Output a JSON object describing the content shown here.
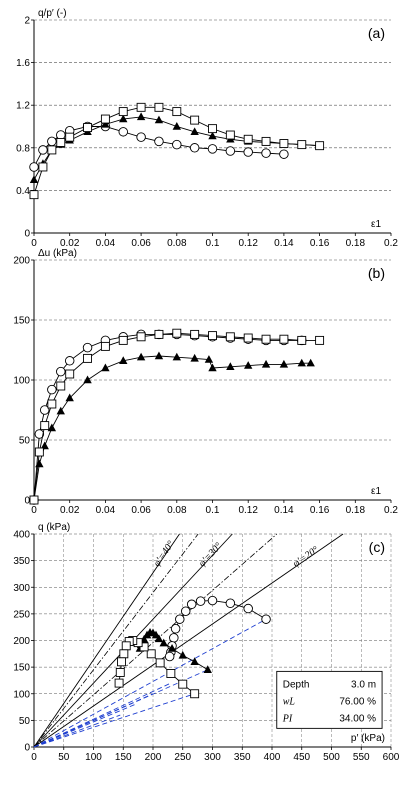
{
  "chart_data": [
    {
      "panel": "(a)",
      "type": "line",
      "ylabel": "q/p′ (-)",
      "xlabel": "ε1",
      "xlim": [
        0,
        0.2
      ],
      "ylim": [
        0,
        2
      ],
      "xticks": [
        0,
        0.02,
        0.04,
        0.06,
        0.08,
        0.1,
        0.12,
        0.14,
        0.16,
        0.18,
        0.2
      ],
      "xtick_labels": [
        "0",
        "0.02",
        "0.04",
        "0.06",
        "0.08",
        "0.1",
        "0.12",
        "0.14",
        "0.16",
        "0.18",
        "0.2"
      ],
      "yticks": [
        0,
        0.4,
        0.8,
        1.2,
        1.6,
        2
      ],
      "ytick_labels": [
        "0",
        "0.4",
        "0.8",
        "1.2",
        "1.6",
        "2"
      ],
      "grid": "horizontal-dashed",
      "series": [
        {
          "marker": "circle",
          "x": [
            0,
            0.005,
            0.01,
            0.015,
            0.02,
            0.03,
            0.04,
            0.05,
            0.06,
            0.07,
            0.08,
            0.09,
            0.1,
            0.11,
            0.12,
            0.13,
            0.14
          ],
          "y": [
            0.62,
            0.78,
            0.86,
            0.92,
            0.96,
            1.0,
            1.0,
            0.95,
            0.9,
            0.86,
            0.83,
            0.8,
            0.79,
            0.77,
            0.76,
            0.75,
            0.74
          ]
        },
        {
          "marker": "triangle",
          "x": [
            0,
            0.005,
            0.01,
            0.015,
            0.02,
            0.03,
            0.04,
            0.05,
            0.06,
            0.07,
            0.08,
            0.09,
            0.1,
            0.11,
            0.12,
            0.13,
            0.14,
            0.15,
            0.16
          ],
          "y": [
            0.5,
            0.65,
            0.78,
            0.83,
            0.87,
            0.95,
            1.02,
            1.07,
            1.09,
            1.06,
            1.0,
            0.95,
            0.91,
            0.88,
            0.86,
            0.85,
            0.84,
            0.83,
            0.82
          ]
        },
        {
          "marker": "square",
          "x": [
            0,
            0.005,
            0.01,
            0.015,
            0.02,
            0.03,
            0.04,
            0.05,
            0.06,
            0.07,
            0.08,
            0.09,
            0.1,
            0.11,
            0.12,
            0.13,
            0.14,
            0.15,
            0.16
          ],
          "y": [
            0.36,
            0.62,
            0.78,
            0.85,
            0.9,
            0.99,
            1.07,
            1.14,
            1.18,
            1.18,
            1.14,
            1.06,
            0.98,
            0.92,
            0.88,
            0.86,
            0.84,
            0.83,
            0.82
          ]
        }
      ]
    },
    {
      "panel": "(b)",
      "type": "line",
      "ylabel": "Δu (kPa)",
      "xlabel": "ε1",
      "xlim": [
        0,
        0.2
      ],
      "ylim": [
        0,
        200
      ],
      "xticks": [
        0,
        0.02,
        0.04,
        0.06,
        0.08,
        0.1,
        0.12,
        0.14,
        0.16,
        0.18,
        0.2
      ],
      "xtick_labels": [
        "0",
        "0.02",
        "0.04",
        "0.06",
        "0.08",
        "0.1",
        "0.12",
        "0.14",
        "0.16",
        "0.18",
        "0.2"
      ],
      "yticks": [
        0,
        50,
        100,
        150,
        200
      ],
      "ytick_labels": [
        "0",
        "50",
        "100",
        "150",
        "200"
      ],
      "grid": "horizontal-dashed",
      "series": [
        {
          "marker": "circle",
          "x": [
            0,
            0.003,
            0.006,
            0.01,
            0.015,
            0.02,
            0.03,
            0.04,
            0.05,
            0.06,
            0.07,
            0.08,
            0.09,
            0.1,
            0.11,
            0.12,
            0.13,
            0.14,
            0.15
          ],
          "y": [
            0,
            55,
            75,
            92,
            107,
            116,
            127,
            133,
            136,
            138,
            138,
            138,
            137,
            136,
            135,
            134,
            133,
            133,
            133
          ]
        },
        {
          "marker": "triangle",
          "x": [
            0,
            0.003,
            0.006,
            0.01,
            0.015,
            0.02,
            0.03,
            0.04,
            0.05,
            0.06,
            0.07,
            0.08,
            0.09,
            0.098,
            0.1,
            0.11,
            0.12,
            0.13,
            0.14,
            0.15,
            0.155
          ],
          "y": [
            0,
            30,
            45,
            60,
            74,
            85,
            100,
            110,
            116,
            119,
            120,
            119,
            118,
            117,
            110,
            111,
            112,
            113,
            113,
            114,
            114
          ]
        },
        {
          "marker": "square",
          "x": [
            0,
            0.003,
            0.006,
            0.01,
            0.015,
            0.02,
            0.03,
            0.04,
            0.05,
            0.06,
            0.07,
            0.08,
            0.09,
            0.1,
            0.11,
            0.12,
            0.13,
            0.14,
            0.15,
            0.16
          ],
          "y": [
            0,
            40,
            62,
            80,
            95,
            105,
            118,
            128,
            133,
            136,
            138,
            139,
            138,
            137,
            136,
            135,
            134,
            134,
            133,
            133
          ]
        }
      ]
    },
    {
      "panel": "(c)",
      "type": "scatter",
      "ylabel": "q (kPa)",
      "xlabel": "p′ (kPa)",
      "xlim": [
        0,
        600
      ],
      "ylim": [
        0,
        400
      ],
      "xticks": [
        0,
        50,
        100,
        150,
        200,
        250,
        300,
        350,
        400,
        450,
        500,
        550,
        600
      ],
      "xtick_labels": [
        "0",
        "50",
        "100",
        "150",
        "200",
        "250",
        "300",
        "350",
        "400",
        "450",
        "500",
        "550",
        "600"
      ],
      "yticks": [
        0,
        50,
        100,
        150,
        200,
        250,
        300,
        350,
        400
      ],
      "ytick_labels": [
        "0",
        "50",
        "100",
        "150",
        "200",
        "250",
        "300",
        "350",
        "400"
      ],
      "grid": "dashed",
      "friction_lines": [
        {
          "label": "φ′=40°",
          "slope": 1.636
        },
        {
          "label": "φ′=30°",
          "slope": 1.2
        },
        {
          "label": "φ′=20°",
          "slope": 0.77
        }
      ],
      "friction_lines_dashdot": [
        {
          "slope": 1.45
        },
        {
          "slope": 0.98
        }
      ],
      "series": [
        {
          "marker": "circle",
          "x": [
            390,
            360,
            330,
            300,
            280,
            265,
            255,
            245,
            238,
            235,
            232,
            230,
            228
          ],
          "y": [
            240,
            260,
            270,
            275,
            274,
            268,
            255,
            240,
            222,
            205,
            190,
            178,
            170
          ]
        },
        {
          "marker": "triangle",
          "x": [
            292,
            270,
            250,
            232,
            218,
            210,
            205,
            200,
            195,
            190,
            185,
            180,
            178
          ],
          "y": [
            145,
            160,
            172,
            185,
            195,
            203,
            210,
            214,
            215,
            210,
            202,
            192,
            185
          ]
        },
        {
          "marker": "square",
          "x": [
            270,
            250,
            230,
            212,
            197,
            185,
            175,
            166,
            160,
            155,
            151,
            147,
            145,
            143
          ],
          "y": [
            100,
            118,
            138,
            158,
            175,
            188,
            196,
            200,
            198,
            190,
            175,
            160,
            140,
            120
          ]
        }
      ],
      "stress_paths_blue_dashed": [
        {
          "to": [
            390,
            240
          ]
        },
        {
          "to": [
            292,
            145
          ]
        },
        {
          "to": [
            270,
            100
          ]
        },
        {
          "to": [
            230,
            120
          ]
        },
        {
          "to": [
            200,
            100
          ]
        },
        {
          "to": [
            170,
            80
          ]
        },
        {
          "to": [
            145,
            60
          ]
        }
      ],
      "info_box": [
        {
          "label": "Depth",
          "value": "3.0 m"
        },
        {
          "label": "wL",
          "value": "76.00 %"
        },
        {
          "label": "PI",
          "value": "34.00 %"
        }
      ]
    }
  ]
}
